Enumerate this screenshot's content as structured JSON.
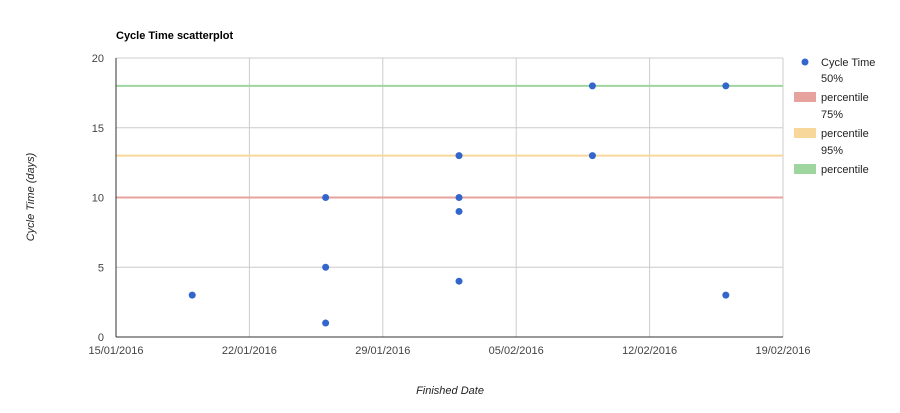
{
  "chart_data": {
    "type": "scatter",
    "title": "Cycle Time scatterplot",
    "xlabel": "Finished Date",
    "ylabel": "Cycle Time (days)",
    "x_ticks": [
      "15/01/2016",
      "22/01/2016",
      "29/01/2016",
      "05/02/2016",
      "12/02/2016",
      "19/02/2016"
    ],
    "y_ticks": [
      "0",
      "5",
      "10",
      "15",
      "20"
    ],
    "xlim": [
      "2016-01-15",
      "2016-02-19"
    ],
    "ylim": [
      0,
      20
    ],
    "grid": true,
    "legend_position": "right",
    "series": [
      {
        "name": "Cycle Time",
        "color": "#3366cc",
        "points": [
          {
            "x": "2016-01-19",
            "y": 3
          },
          {
            "x": "2016-01-26",
            "y": 10
          },
          {
            "x": "2016-01-26",
            "y": 5
          },
          {
            "x": "2016-01-26",
            "y": 1
          },
          {
            "x": "2016-02-02",
            "y": 13
          },
          {
            "x": "2016-02-02",
            "y": 10
          },
          {
            "x": "2016-02-02",
            "y": 9
          },
          {
            "x": "2016-02-02",
            "y": 4
          },
          {
            "x": "2016-02-09",
            "y": 18
          },
          {
            "x": "2016-02-09",
            "y": 13
          },
          {
            "x": "2016-02-16",
            "y": 18
          },
          {
            "x": "2016-02-16",
            "y": 3
          }
        ]
      }
    ],
    "reference_lines": [
      {
        "label_top": "50%",
        "label_bottom": "percentile",
        "y": 10,
        "color": "#e6a29d"
      },
      {
        "label_top": "75%",
        "label_bottom": "percentile",
        "y": 13,
        "color": "#f7d89a"
      },
      {
        "label_top": "95%",
        "label_bottom": "percentile",
        "y": 18,
        "color": "#9fd59f"
      }
    ]
  }
}
